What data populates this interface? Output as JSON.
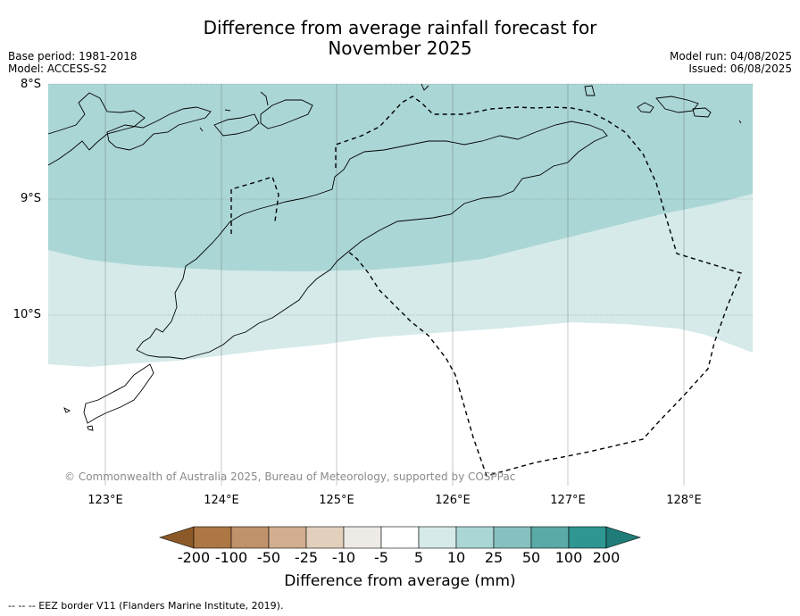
{
  "title_line1": "Difference from average rainfall forecast for",
  "title_line2": "November 2025",
  "base_period": "Base period: 1981-2018",
  "model": "Model: ACCESS-S2",
  "model_run": "Model run: 04/08/2025",
  "issued": "Issued: 06/08/2025",
  "lat_labels": [
    "8°S",
    "9°S",
    "10°S"
  ],
  "lon_labels": [
    "123°E",
    "124°E",
    "125°E",
    "126°E",
    "127°E",
    "128°E"
  ],
  "copyright": "© Commonwealth of Australia 2025, Bureau of Meteorology, supported by COSPPac",
  "colorbar": {
    "ticks": [
      "-200",
      "-100",
      "-50",
      "-25",
      "-10",
      "-5",
      "5",
      "10",
      "25",
      "50",
      "100",
      "200"
    ],
    "colors": [
      "#8c5a28",
      "#ad7744",
      "#bf926b",
      "#d1ae8f",
      "#e2d0bd",
      "#eeebe7",
      "#ffffff",
      "#d5eae9",
      "#abd6d6",
      "#86c1bf",
      "#5aaaa8",
      "#2f9692",
      "#1f7c78"
    ],
    "label": "Difference from average (mm)"
  },
  "legend_text": "--  --  -- EEZ border V11 (Flanders Marine Institute, 2019).",
  "map_classes": [
    {
      "range": "10 to 25",
      "color": "#abd6d6",
      "area": "north"
    },
    {
      "range": "5 to 10",
      "color": "#d5eae9",
      "area": "middle"
    },
    {
      "range": "-5 to 5",
      "color": "#ffffff",
      "area": "south"
    }
  ]
}
